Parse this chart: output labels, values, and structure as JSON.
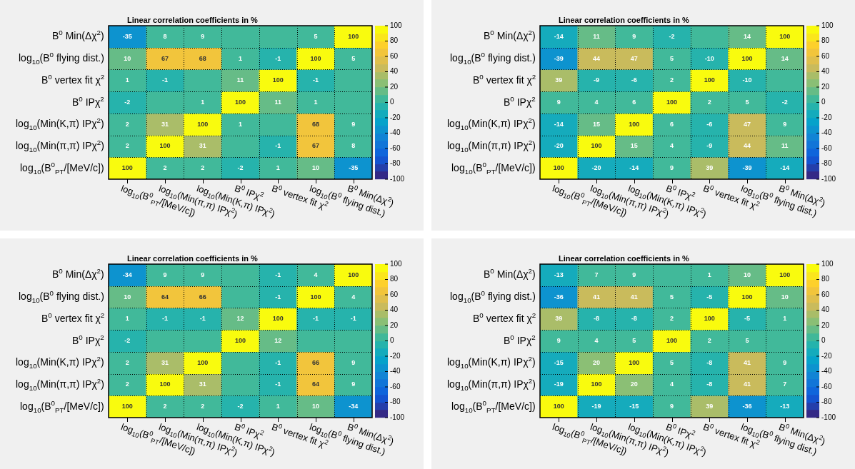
{
  "chart_data": [
    {
      "type": "heatmap",
      "title": "Linear correlation coefficients in %",
      "grid": true,
      "clim": [
        -100,
        100
      ],
      "cticks": [
        -100,
        -80,
        -60,
        -40,
        -20,
        0,
        20,
        40,
        60,
        80,
        100
      ],
      "categories": [
        "log$_{10}$(B$^{0}$$_{PT}$/[MeV/c])",
        "log$_{10}$(Min(π,π) IPχ$^{2}$)",
        "log$_{10}$(Min(K,π) IPχ$^{2}$)",
        "B$^{0}$ IPχ$^{2}$",
        "B$^{0}$ vertex fit χ$^{2}$",
        "log$_{10}$(B$^{0}$ flying dist.)",
        "B$^{0}$ Min(Δχ$^{2}$)"
      ],
      "y_categories": [
        "B$^{0}$ Min(Δχ$^{2}$)",
        "log$_{10}$(B$^{0}$ flying dist.)",
        "B$^{0}$ vertex fit χ$^{2}$",
        "B$^{0}$ IPχ$^{2}$",
        "log$_{10}$(Min(K,π) IPχ$^{2}$)",
        "log$_{10}$(Min(π,π) IPχ$^{2}$)",
        "log$_{10}$(B$^{0}$$_{PT}$/[MeV/c])"
      ],
      "cells": [
        [
          -35,
          8,
          9,
          0,
          0,
          5,
          100
        ],
        [
          10,
          67,
          68,
          1,
          -1,
          100,
          5
        ],
        [
          1,
          -1,
          0,
          11,
          100,
          -1,
          0
        ],
        [
          -2,
          0,
          1,
          100,
          11,
          1,
          0
        ],
        [
          2,
          31,
          100,
          1,
          0,
          68,
          9
        ],
        [
          2,
          100,
          31,
          0,
          -1,
          67,
          8
        ],
        [
          100,
          2,
          2,
          -2,
          1,
          10,
          -35
        ]
      ],
      "cell_labels": [
        [
          "-35",
          "8",
          "9",
          null,
          null,
          "5",
          "100"
        ],
        [
          "10",
          "67",
          "68",
          "1",
          "-1",
          "100",
          "5"
        ],
        [
          "1",
          "-1",
          null,
          "11",
          "100",
          "-1",
          null
        ],
        [
          "-2",
          null,
          "1",
          "100",
          "11",
          "1",
          null
        ],
        [
          "2",
          "31",
          "100",
          "1",
          null,
          "68",
          "9"
        ],
        [
          "2",
          "100",
          "31",
          null,
          "-1",
          "67",
          "8"
        ],
        [
          "100",
          "2",
          "2",
          "-2",
          "1",
          "10",
          "-35"
        ]
      ]
    },
    {
      "type": "heatmap",
      "title": "Linear correlation coefficients in %",
      "grid": true,
      "clim": [
        -100,
        100
      ],
      "cticks": [
        -100,
        -80,
        -60,
        -40,
        -20,
        0,
        20,
        40,
        60,
        80,
        100
      ],
      "categories": [
        "log$_{10}$(B$^{0}$$_{PT}$/[MeV/c])",
        "log$_{10}$(Min(π,π) IPχ$^{2}$)",
        "log$_{10}$(Min(K,π) IPχ$^{2}$)",
        "B$^{0}$ IPχ$^{2}$",
        "B$^{0}$ vertex fit χ$^{2}$",
        "log$_{10}$(B$^{0}$ flying dist.)",
        "B$^{0}$ Min(Δχ$^{2}$)"
      ],
      "y_categories": [
        "B$^{0}$ Min(Δχ$^{2}$)",
        "log$_{10}$(B$^{0}$ flying dist.)",
        "B$^{0}$ vertex fit χ$^{2}$",
        "B$^{0}$ IPχ$^{2}$",
        "log$_{10}$(Min(K,π) IPχ$^{2}$)",
        "log$_{10}$(Min(π,π) IPχ$^{2}$)",
        "log$_{10}$(B$^{0}$$_{PT}$/[MeV/c])"
      ],
      "cells": [
        [
          -14,
          11,
          9,
          -2,
          0,
          14,
          100
        ],
        [
          -39,
          44,
          47,
          5,
          -10,
          100,
          14
        ],
        [
          39,
          -9,
          -6,
          2,
          100,
          -10,
          0
        ],
        [
          9,
          4,
          6,
          100,
          2,
          5,
          -2
        ],
        [
          -14,
          15,
          100,
          6,
          -6,
          47,
          9
        ],
        [
          -20,
          100,
          15,
          4,
          -9,
          44,
          11
        ],
        [
          100,
          -20,
          -14,
          9,
          39,
          -39,
          -14
        ]
      ],
      "cell_labels": [
        [
          "-14",
          "11",
          "9",
          "-2",
          null,
          "14",
          "100"
        ],
        [
          "-39",
          "44",
          "47",
          "5",
          "-10",
          "100",
          "14"
        ],
        [
          "39",
          "-9",
          "-6",
          "2",
          "100",
          "-10",
          null
        ],
        [
          "9",
          "4",
          "6",
          "100",
          "2",
          "5",
          "-2"
        ],
        [
          "-14",
          "15",
          "100",
          "6",
          "-6",
          "47",
          "9"
        ],
        [
          "-20",
          "100",
          "15",
          "4",
          "-9",
          "44",
          "11"
        ],
        [
          "100",
          "-20",
          "-14",
          "9",
          "39",
          "-39",
          "-14"
        ]
      ]
    },
    {
      "type": "heatmap",
      "title": "Linear correlation coefficients in %",
      "grid": true,
      "clim": [
        -100,
        100
      ],
      "cticks": [
        -100,
        -80,
        -60,
        -40,
        -20,
        0,
        20,
        40,
        60,
        80,
        100
      ],
      "categories": [
        "log$_{10}$(B$^{0}$$_{PT}$/[MeV/c])",
        "log$_{10}$(Min(π,π) IPχ$^{2}$)",
        "log$_{10}$(Min(K,π) IPχ$^{2}$)",
        "B$^{0}$ IPχ$^{2}$",
        "B$^{0}$ vertex fit χ$^{2}$",
        "log$_{10}$(B$^{0}$ flying dist.)",
        "B$^{0}$ Min(Δχ$^{2}$)"
      ],
      "y_categories": [
        "B$^{0}$ Min(Δχ$^{2}$)",
        "log$_{10}$(B$^{0}$ flying dist.)",
        "B$^{0}$ vertex fit χ$^{2}$",
        "B$^{0}$ IPχ$^{2}$",
        "log$_{10}$(Min(K,π) IPχ$^{2}$)",
        "log$_{10}$(Min(π,π) IPχ$^{2}$)",
        "log$_{10}$(B$^{0}$$_{PT}$/[MeV/c])"
      ],
      "cells": [
        [
          -34,
          9,
          9,
          0,
          -1,
          4,
          100
        ],
        [
          10,
          64,
          66,
          0,
          -1,
          100,
          4
        ],
        [
          1,
          -1,
          -1,
          12,
          100,
          -1,
          -1
        ],
        [
          -2,
          0,
          0,
          100,
          12,
          0,
          0
        ],
        [
          2,
          31,
          100,
          0,
          -1,
          66,
          9
        ],
        [
          2,
          100,
          31,
          0,
          -1,
          64,
          9
        ],
        [
          100,
          2,
          2,
          -2,
          1,
          10,
          -34
        ]
      ],
      "cell_labels": [
        [
          "-34",
          "9",
          "9",
          null,
          "-1",
          "4",
          "100"
        ],
        [
          "10",
          "64",
          "66",
          null,
          "-1",
          "100",
          "4"
        ],
        [
          "1",
          "-1",
          "-1",
          "12",
          "100",
          "-1",
          "-1"
        ],
        [
          "-2",
          null,
          null,
          "100",
          "12",
          null,
          null
        ],
        [
          "2",
          "31",
          "100",
          null,
          "-1",
          "66",
          "9"
        ],
        [
          "2",
          "100",
          "31",
          null,
          "-1",
          "64",
          "9"
        ],
        [
          "100",
          "2",
          "2",
          "-2",
          "1",
          "10",
          "-34"
        ]
      ]
    },
    {
      "type": "heatmap",
      "title": "Linear correlation coefficients in %",
      "grid": true,
      "clim": [
        -100,
        100
      ],
      "cticks": [
        -100,
        -80,
        -60,
        -40,
        -20,
        0,
        20,
        40,
        60,
        80,
        100
      ],
      "categories": [
        "log$_{10}$(B$^{0}$$_{PT}$/[MeV/c])",
        "log$_{10}$(Min(π,π) IPχ$^{2}$)",
        "log$_{10}$(Min(K,π) IPχ$^{2}$)",
        "B$^{0}$ IPχ$^{2}$",
        "B$^{0}$ vertex fit χ$^{2}$",
        "log$_{10}$(B$^{0}$ flying dist.)",
        "B$^{0}$ Min(Δχ$^{2}$)"
      ],
      "y_categories": [
        "B$^{0}$ Min(Δχ$^{2}$)",
        "log$_{10}$(B$^{0}$ flying dist.)",
        "B$^{0}$ vertex fit χ$^{2}$",
        "B$^{0}$ IPχ$^{2}$",
        "log$_{10}$(Min(K,π) IPχ$^{2}$)",
        "log$_{10}$(Min(π,π) IPχ$^{2}$)",
        "log$_{10}$(B$^{0}$$_{PT}$/[MeV/c])"
      ],
      "cells": [
        [
          -13,
          7,
          9,
          0,
          1,
          10,
          100
        ],
        [
          -36,
          41,
          41,
          5,
          -5,
          100,
          10
        ],
        [
          39,
          -8,
          -8,
          2,
          100,
          -5,
          1
        ],
        [
          9,
          4,
          5,
          100,
          2,
          5,
          0
        ],
        [
          -15,
          20,
          100,
          5,
          -8,
          41,
          9
        ],
        [
          -19,
          100,
          20,
          4,
          -8,
          41,
          7
        ],
        [
          100,
          -19,
          -15,
          9,
          39,
          -36,
          -13
        ]
      ],
      "cell_labels": [
        [
          "-13",
          "7",
          "9",
          null,
          "1",
          "10",
          "100"
        ],
        [
          "-36",
          "41",
          "41",
          "5",
          "-5",
          "100",
          "10"
        ],
        [
          "39",
          "-8",
          "-8",
          "2",
          "100",
          "-5",
          "1"
        ],
        [
          "9",
          "4",
          "5",
          "100",
          "2",
          "5",
          null
        ],
        [
          "-15",
          "20",
          "100",
          "5",
          "-8",
          "41",
          "9"
        ],
        [
          "-19",
          "100",
          "20",
          "4",
          "-8",
          "41",
          "7"
        ],
        [
          "100",
          "-19",
          "-15",
          "9",
          "39",
          "-36",
          "-13"
        ]
      ]
    }
  ]
}
